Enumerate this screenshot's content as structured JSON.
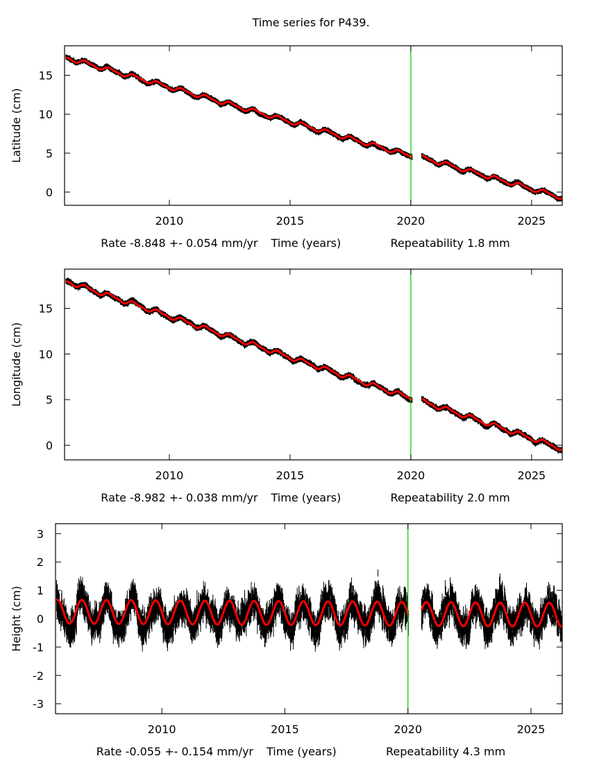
{
  "title": "Time series for P439.",
  "colors": {
    "data": "#000000",
    "model": "#ff0000",
    "break_line": "#00cc00",
    "frame": "#000000"
  },
  "chart_data": [
    {
      "type": "scatter",
      "component": "north",
      "ylabel": "Latitude (cm)",
      "xlabel_left": "Rate -8.848 +- 0.054 mm/yr",
      "xlabel_center": "Time (years)",
      "xlabel_right": "Repeatability 1.8 mm",
      "xlim": [
        2005.66,
        2026.27
      ],
      "ylim": [
        -1.7,
        18.8
      ],
      "xticks": [
        2010,
        2015,
        2020,
        2025
      ],
      "yticks": [
        0,
        5,
        10,
        15
      ],
      "break_epoch": 2020.0,
      "data_gap": [
        2020.05,
        2020.45
      ],
      "rate_cm_per_yr": -0.8848,
      "intercept_at_start_cm": 17.3,
      "offset_after_break_cm": 0.2,
      "annual_amplitude_cm": 0.25,
      "noise_cm": 0.18,
      "grid": false
    },
    {
      "type": "scatter",
      "component": "east",
      "ylabel": "Longitude (cm)",
      "xlabel_left": "Rate -8.982 +- 0.038 mm/yr",
      "xlabel_center": "Time (years)",
      "xlabel_right": "Repeatability 2.0 mm",
      "xlim": [
        2005.66,
        2026.27
      ],
      "ylim": [
        -1.6,
        19.3
      ],
      "xticks": [
        2010,
        2015,
        2020,
        2025
      ],
      "yticks": [
        0,
        5,
        10,
        15
      ],
      "break_epoch": 2020.0,
      "data_gap": [
        2020.05,
        2020.45
      ],
      "rate_cm_per_yr": -0.8982,
      "intercept_at_start_cm": 18.0,
      "offset_after_break_cm": 0.1,
      "annual_amplitude_cm": 0.22,
      "noise_cm": 0.2,
      "grid": false
    },
    {
      "type": "scatter",
      "component": "up",
      "ylabel": "Height (cm)",
      "xlabel_left": "Rate -0.055 +- 0.154 mm/yr",
      "xlabel_center": "Time (years)",
      "xlabel_right": "Repeatability 4.3 mm",
      "xlim": [
        2005.68,
        2026.27
      ],
      "ylim": [
        -3.35,
        3.35
      ],
      "xticks": [
        2010,
        2015,
        2020,
        2025
      ],
      "yticks": [
        -3,
        -2,
        -1,
        0,
        1,
        2,
        3
      ],
      "break_epoch": 2020.0,
      "data_gap": [
        2020.02,
        2020.55
      ],
      "rate_cm_per_yr": -0.0055,
      "intercept_at_start_cm": 0.25,
      "offset_after_break_cm": 0.0,
      "annual_amplitude_cm": 0.42,
      "annual_peak_phase_yr": 0.75,
      "noise_cm": 0.43,
      "grid": false
    }
  ]
}
